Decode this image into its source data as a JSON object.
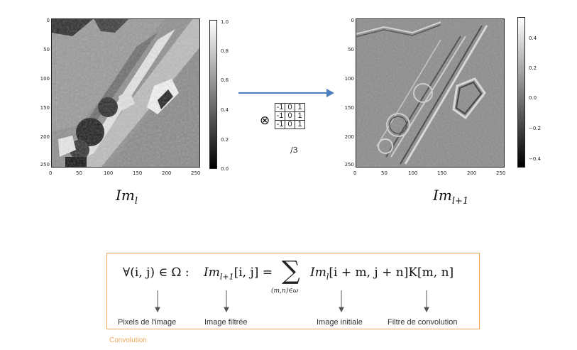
{
  "left_plot": {
    "y_ticks": [
      "0",
      "50",
      "100",
      "150",
      "200",
      "250"
    ],
    "x_ticks": [
      "0",
      "50",
      "100",
      "150",
      "200",
      "250"
    ],
    "colorbar_ticks": [
      "1.0",
      "0.8",
      "0.6",
      "0.4",
      "0.2",
      "0.0"
    ],
    "caption_base": "Im",
    "caption_sub": "l"
  },
  "right_plot": {
    "y_ticks": [
      "0",
      "50",
      "100",
      "150",
      "200",
      "250"
    ],
    "x_ticks": [
      "0",
      "50",
      "100",
      "150",
      "200",
      "250"
    ],
    "colorbar_ticks": [
      "0.4",
      "0.2",
      "0.0",
      "−0.2",
      "−0.4"
    ],
    "caption_base": "Im",
    "caption_sub": "l+1"
  },
  "kernel": {
    "operator": "⊗",
    "rows": [
      [
        "-1",
        "0",
        "1"
      ],
      [
        "-1",
        "0",
        "1"
      ],
      [
        "-1",
        "0",
        "1"
      ]
    ],
    "divisor": "/3"
  },
  "formula": {
    "quantifier": "∀(i, j) ∈ Ω :",
    "lhs_base": "Im",
    "lhs_sub": "l+1",
    "lhs_index": "[i, j] =",
    "sum_symbol": "∑",
    "sum_under": "(m,n)∈ω",
    "rhs_base": "Im",
    "rhs_sub": "l",
    "rhs_index": "[i + m, j + n]K[m, n]"
  },
  "terms": {
    "pixels": "Pixels de l'image",
    "filtered": "Image filtrée",
    "initial": "Image initiale",
    "filter": "Filtre de convolution"
  },
  "label": "Convolution",
  "colors": {
    "accent_orange": "#f0a65a",
    "arrow_blue": "#4a7ebf"
  }
}
